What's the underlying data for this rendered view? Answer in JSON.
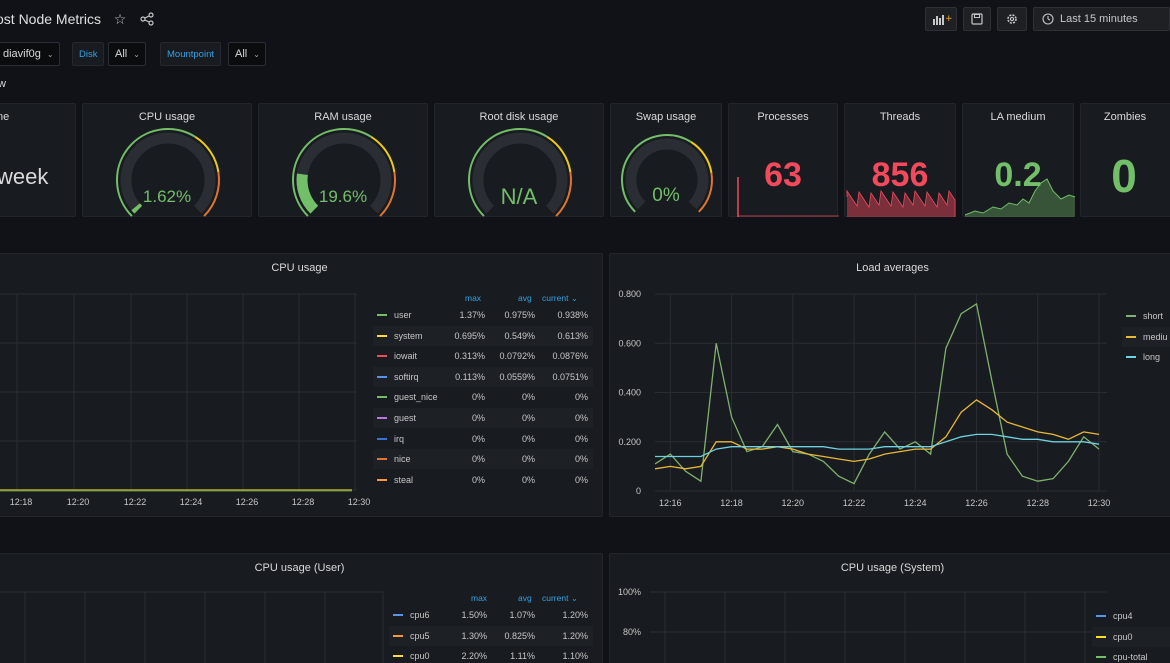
{
  "header": {
    "title": "ost Node Metrics",
    "time_range": "Last 15 minutes"
  },
  "variables": {
    "host_value": "diavif0g",
    "disk_label": "Disk",
    "disk_value": "All",
    "host_all_value": "All",
    "mountpoint_label": "Mountpoint",
    "mountpoint_value": "All"
  },
  "rows": {
    "overview_fragment": "w",
    "bottom_fragment": ""
  },
  "stats": {
    "uptime": {
      "title": "ne",
      "value": "week"
    },
    "cpu": {
      "title": "CPU usage",
      "value": "1.62%",
      "fraction": 0.0162,
      "color": "#73bf69"
    },
    "ram": {
      "title": "RAM usage",
      "value": "19.6%",
      "fraction": 0.196,
      "color": "#73bf69"
    },
    "root_disk": {
      "title": "Root disk usage",
      "value": "N/A",
      "fraction": 0,
      "color": "#73bf69"
    },
    "swap": {
      "title": "Swap usage",
      "value": "0%",
      "fraction": 0,
      "color": "#73bf69"
    },
    "processes": {
      "title": "Processes",
      "value": "63",
      "color": "#f2495c"
    },
    "threads": {
      "title": "Threads",
      "value": "856",
      "color": "#f2495c"
    },
    "la_medium": {
      "title": "LA medium",
      "value": "0.2",
      "color": "#73bf69"
    },
    "zombies": {
      "title": "Zombies",
      "value": "0",
      "color": "#73bf69"
    }
  },
  "cpu_panel": {
    "title": "CPU usage",
    "x_ticks": [
      "12:18",
      "12:20",
      "12:22",
      "12:24",
      "12:26",
      "12:28",
      "12:30"
    ],
    "legend_headers": {
      "max": "max",
      "avg": "avg",
      "current": "current"
    },
    "legend": [
      {
        "name": "user",
        "max": "1.37%",
        "avg": "0.975%",
        "current": "0.938%",
        "color": "#73bf69"
      },
      {
        "name": "system",
        "max": "0.695%",
        "avg": "0.549%",
        "current": "0.613%",
        "color": "#fade2a"
      },
      {
        "name": "iowait",
        "max": "0.313%",
        "avg": "0.0792%",
        "current": "0.0876%",
        "color": "#f2495c"
      },
      {
        "name": "softirq",
        "max": "0.113%",
        "avg": "0.0559%",
        "current": "0.0751%",
        "color": "#5794f2"
      },
      {
        "name": "guest_nice",
        "max": "0%",
        "avg": "0%",
        "current": "0%",
        "color": "#73bf69"
      },
      {
        "name": "guest",
        "max": "0%",
        "avg": "0%",
        "current": "0%",
        "color": "#b877d9"
      },
      {
        "name": "irq",
        "max": "0%",
        "avg": "0%",
        "current": "0%",
        "color": "#3274d9"
      },
      {
        "name": "nice",
        "max": "0%",
        "avg": "0%",
        "current": "0%",
        "color": "#e0752d"
      },
      {
        "name": "steal",
        "max": "0%",
        "avg": "0%",
        "current": "0%",
        "color": "#ff9830"
      }
    ]
  },
  "load_panel": {
    "title": "Load averages",
    "y_ticks": [
      "0.800",
      "0.600",
      "0.400",
      "0.200",
      "0"
    ],
    "x_ticks": [
      "12:16",
      "12:18",
      "12:20",
      "12:22",
      "12:24",
      "12:26",
      "12:28",
      "12:30"
    ],
    "legend": [
      {
        "name": "short",
        "color": "#7eb26d"
      },
      {
        "name": "mediu",
        "color": "#eab839"
      },
      {
        "name": "long",
        "color": "#6ed0e0"
      }
    ]
  },
  "chart_data": [
    {
      "type": "line",
      "title": "Load averages",
      "ylim": [
        0,
        0.8
      ],
      "x": [
        "12:15.5",
        "12:16",
        "12:16.5",
        "12:17",
        "12:17.5",
        "12:18",
        "12:18.5",
        "12:19",
        "12:19.5",
        "12:20",
        "12:20.5",
        "12:21",
        "12:21.5",
        "12:22",
        "12:22.5",
        "12:23",
        "12:23.5",
        "12:24",
        "12:24.5",
        "12:25",
        "12:25.5",
        "12:26",
        "12:26.5",
        "12:27",
        "12:27.5",
        "12:28",
        "12:28.5",
        "12:29",
        "12:29.5",
        "12:30"
      ],
      "series": [
        {
          "name": "short",
          "values": [
            0.11,
            0.15,
            0.08,
            0.04,
            0.6,
            0.3,
            0.16,
            0.18,
            0.27,
            0.16,
            0.15,
            0.12,
            0.06,
            0.03,
            0.15,
            0.24,
            0.17,
            0.2,
            0.15,
            0.58,
            0.72,
            0.76,
            0.45,
            0.15,
            0.06,
            0.04,
            0.05,
            0.12,
            0.22,
            0.17
          ]
        },
        {
          "name": "mediu",
          "values": [
            0.09,
            0.1,
            0.09,
            0.1,
            0.2,
            0.2,
            0.17,
            0.17,
            0.18,
            0.17,
            0.15,
            0.14,
            0.13,
            0.12,
            0.13,
            0.15,
            0.16,
            0.17,
            0.17,
            0.22,
            0.32,
            0.37,
            0.33,
            0.28,
            0.26,
            0.24,
            0.23,
            0.21,
            0.24,
            0.23
          ]
        },
        {
          "name": "long",
          "values": [
            0.14,
            0.14,
            0.14,
            0.14,
            0.17,
            0.18,
            0.18,
            0.18,
            0.18,
            0.18,
            0.18,
            0.18,
            0.17,
            0.17,
            0.17,
            0.18,
            0.18,
            0.18,
            0.18,
            0.2,
            0.22,
            0.23,
            0.23,
            0.22,
            0.21,
            0.21,
            0.2,
            0.2,
            0.2,
            0.19
          ]
        }
      ]
    }
  ],
  "cpu_user_panel": {
    "title": "CPU usage (User)",
    "legend_headers": {
      "max": "max",
      "avg": "avg",
      "current": "current"
    },
    "legend": [
      {
        "name": "cpu6",
        "max": "1.50%",
        "avg": "1.07%",
        "current": "1.20%",
        "color": "#5794f2"
      },
      {
        "name": "cpu5",
        "max": "1.30%",
        "avg": "0.825%",
        "current": "1.20%",
        "color": "#ff9830"
      },
      {
        "name": "cpu0",
        "max": "2.20%",
        "avg": "1.11%",
        "current": "1.10%",
        "color": "#fade2a"
      }
    ]
  },
  "cpu_system_panel": {
    "title": "CPU usage (System)",
    "y_ticks": [
      "100%",
      "80%"
    ],
    "legend": [
      {
        "name": "cpu4",
        "color": "#5794f2"
      },
      {
        "name": "cpu0",
        "color": "#fade2a"
      },
      {
        "name": "cpu-total",
        "color": "#73bf69"
      }
    ]
  }
}
